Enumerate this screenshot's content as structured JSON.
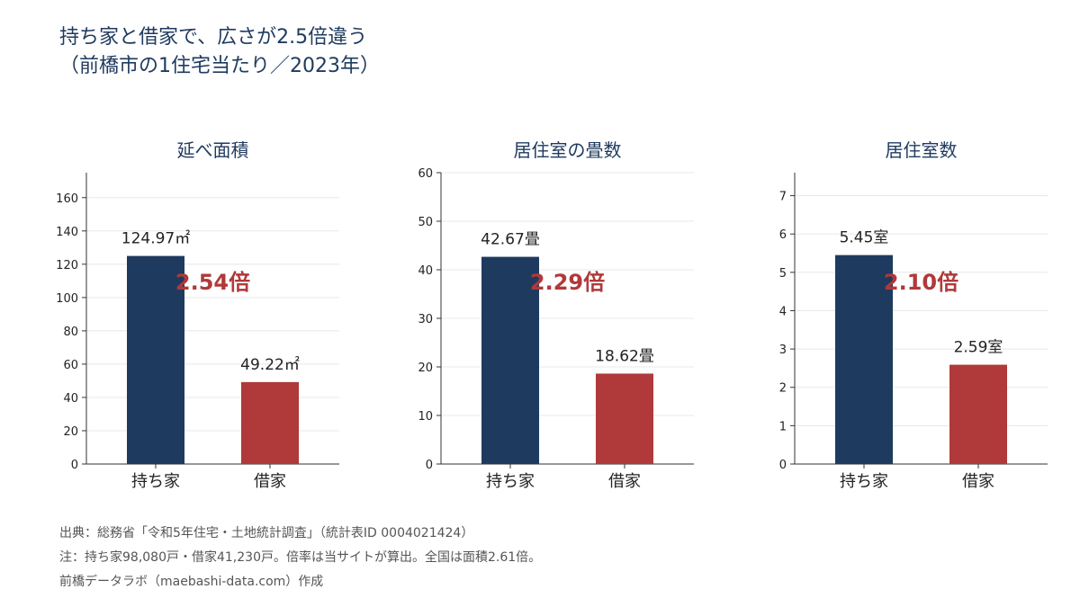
{
  "title": {
    "line1": "持ち家と借家で、広さが2.5倍違う",
    "line2": "（前橋市の1住宅当たり／2023年）"
  },
  "colors": {
    "owned": "#1f3a5f",
    "rented": "#b0393a",
    "ratio_text": "#b0393a",
    "title": "#1f3a5f"
  },
  "chart_data": [
    {
      "type": "bar",
      "title": "延べ面積",
      "categories": [
        "持ち家",
        "借家"
      ],
      "values": [
        124.97,
        49.22
      ],
      "value_labels": [
        "124.97㎡",
        "49.22㎡"
      ],
      "ylim": [
        0,
        175
      ],
      "yticks": [
        0,
        20,
        40,
        60,
        80,
        100,
        120,
        140,
        160
      ],
      "ratio_label": "2.54倍",
      "grid": true
    },
    {
      "type": "bar",
      "title": "居住室の畳数",
      "categories": [
        "持ち家",
        "借家"
      ],
      "values": [
        42.67,
        18.62
      ],
      "value_labels": [
        "42.67畳",
        "18.62畳"
      ],
      "ylim": [
        0,
        60
      ],
      "yticks": [
        0,
        10,
        20,
        30,
        40,
        50,
        60
      ],
      "ratio_label": "2.29倍",
      "grid": true
    },
    {
      "type": "bar",
      "title": "居住室数",
      "categories": [
        "持ち家",
        "借家"
      ],
      "values": [
        5.45,
        2.59
      ],
      "value_labels": [
        "5.45室",
        "2.59室"
      ],
      "ylim": [
        0,
        7.6
      ],
      "yticks": [
        0,
        1,
        2,
        3,
        4,
        5,
        6,
        7
      ],
      "ratio_label": "2.10倍",
      "grid": true
    }
  ],
  "footer": {
    "source": "出典：総務省「令和5年住宅・土地統計調査」（統計表ID 0004021424）",
    "note": "注：持ち家98,080戸・借家41,230戸。倍率は当サイトが算出。全国は面積2.61倍。",
    "credit": "前橋データラボ（maebashi-data.com）作成"
  }
}
